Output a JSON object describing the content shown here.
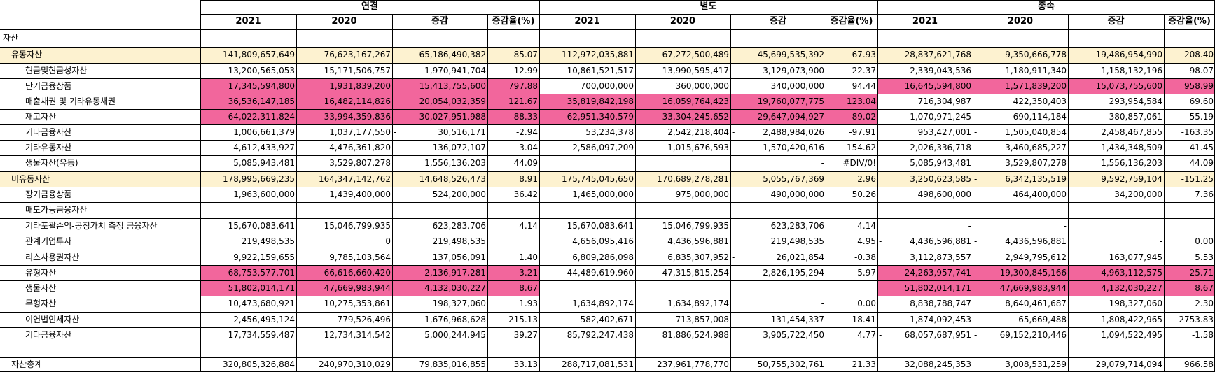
{
  "groups": [
    "연결",
    "별도",
    "종속"
  ],
  "subheaders": [
    "2021",
    "2020",
    "증감",
    "증감율(%)"
  ],
  "rows": [
    {
      "label": "자산",
      "style": "section",
      "values": [
        "",
        "",
        "",
        "",
        "",
        "",
        "",
        "",
        "",
        "",
        "",
        ""
      ]
    },
    {
      "label": "유동자산",
      "style": "subtotal",
      "values": [
        "141,809,657,649",
        "76,623,167,267",
        "65,186,490,382",
        "85.07",
        "112,972,035,881",
        "67,272,500,489",
        "45,699,535,392",
        "67.93",
        "28,837,621,768",
        "9,350,666,778",
        "19,486,954,990",
        "208.40"
      ]
    },
    {
      "label": "현금및현금성자산",
      "style": "item",
      "values": [
        "13,200,565,053",
        "15,171,506,757",
        "- 1,970,941,704",
        "-12.99",
        "10,861,521,517",
        "13,990,595,417",
        "- 3,129,073,900",
        "-22.37",
        "2,339,043,536",
        "1,180,911,340",
        "1,158,132,196",
        "98.07"
      ]
    },
    {
      "label": "단기금융상품",
      "style": "item",
      "hl": [
        0,
        1,
        2,
        3,
        8,
        9,
        10,
        11
      ],
      "values": [
        "17,345,594,800",
        "1,931,839,200",
        "15,413,755,600",
        "797.88",
        "700,000,000",
        "360,000,000",
        "340,000,000",
        "94.44",
        "16,645,594,800",
        "1,571,839,200",
        "15,073,755,600",
        "958.99"
      ]
    },
    {
      "label": "매출채권 및 기타유동채권",
      "style": "item",
      "hl": [
        0,
        1,
        2,
        3,
        4,
        5,
        6,
        7
      ],
      "values": [
        "36,536,147,185",
        "16,482,114,826",
        "20,054,032,359",
        "121.67",
        "35,819,842,198",
        "16,059,764,423",
        "19,760,077,775",
        "123.04",
        "716,304,987",
        "422,350,403",
        "293,954,584",
        "69.60"
      ]
    },
    {
      "label": "재고자산",
      "style": "item",
      "hl": [
        0,
        1,
        2,
        3,
        4,
        5,
        6,
        7
      ],
      "values": [
        "64,022,311,824",
        "33,994,359,836",
        "30,027,951,988",
        "88.33",
        "62,951,340,579",
        "33,304,245,652",
        "29,647,094,927",
        "89.02",
        "1,070,971,245",
        "690,114,184",
        "380,857,061",
        "55.19"
      ]
    },
    {
      "label": "기타금융자산",
      "style": "item",
      "values": [
        "1,006,661,379",
        "1,037,177,550",
        "- 30,516,171",
        "-2.94",
        "53,234,378",
        "2,542,218,404",
        "- 2,488,984,026",
        "-97.91",
        "953,427,001",
        "- 1,505,040,854",
        "2,458,467,855",
        "-163.35"
      ]
    },
    {
      "label": "기타유동자산",
      "style": "item",
      "values": [
        "4,612,433,927",
        "4,476,361,820",
        "136,072,107",
        "3.04",
        "2,586,097,209",
        "1,015,676,593",
        "1,570,420,616",
        "154.62",
        "2,026,336,718",
        "3,460,685,227",
        "- 1,434,348,509",
        "-41.45"
      ]
    },
    {
      "label": "생물자산(유동)",
      "style": "item",
      "values": [
        "5,085,943,481",
        "3,529,807,278",
        "1,556,136,203",
        "44.09",
        "",
        "",
        "-",
        "#DIV/0!",
        "5,085,943,481",
        "3,529,807,278",
        "1,556,136,203",
        "44.09"
      ]
    },
    {
      "label": "비유동자산",
      "style": "subtotal",
      "values": [
        "178,995,669,235",
        "164,347,142,762",
        "14,648,526,473",
        "8.91",
        "175,745,045,650",
        "170,689,278,281",
        "5,055,767,369",
        "2.96",
        "3,250,623,585",
        "- 6,342,135,519",
        "9,592,759,104",
        "-151.25"
      ]
    },
    {
      "label": "장기금융상품",
      "style": "item",
      "values": [
        "1,963,600,000",
        "1,439,400,000",
        "524,200,000",
        "36.42",
        "1,465,000,000",
        "975,000,000",
        "490,000,000",
        "50.26",
        "498,600,000",
        "464,400,000",
        "34,200,000",
        "7.36"
      ]
    },
    {
      "label": "매도가능금융자산",
      "style": "item",
      "values": [
        "",
        "",
        "",
        "",
        "",
        "",
        "",
        "",
        "",
        "",
        "",
        ""
      ]
    },
    {
      "label": "기타포괄손익-공정가치 측정 금융자산",
      "style": "item",
      "values": [
        "15,670,083,641",
        "15,046,799,935",
        "623,283,706",
        "4.14",
        "15,670,083,641",
        "15,046,799,935",
        "623,283,706",
        "4.14",
        "-",
        "-",
        "",
        ""
      ]
    },
    {
      "label": "관계기업투자",
      "style": "item",
      "values": [
        "219,498,535",
        "0",
        "219,498,535",
        "",
        "4,656,095,416",
        "4,436,596,881",
        "219,498,535",
        "4.95",
        "- 4,436,596,881",
        "- 4,436,596,881",
        "-",
        "0.00"
      ]
    },
    {
      "label": "리스사용권자산",
      "style": "item",
      "values": [
        "9,922,159,655",
        "9,785,103,564",
        "137,056,091",
        "1.40",
        "6,809,286,098",
        "6,835,307,952",
        "- 26,021,854",
        "-0.38",
        "3,112,873,557",
        "2,949,795,612",
        "163,077,945",
        "5.53"
      ]
    },
    {
      "label": "유형자산",
      "style": "item",
      "hl": [
        0,
        1,
        2,
        3,
        8,
        9,
        10,
        11
      ],
      "values": [
        "68,753,577,701",
        "66,616,660,420",
        "2,136,917,281",
        "3.21",
        "44,489,619,960",
        "47,315,815,254",
        "- 2,826,195,294",
        "-5.97",
        "24,263,957,741",
        "19,300,845,166",
        "4,963,112,575",
        "25.71"
      ]
    },
    {
      "label": "생물자산",
      "style": "item",
      "hl": [
        0,
        1,
        2,
        3,
        8,
        9,
        10,
        11
      ],
      "values": [
        "51,802,014,171",
        "47,669,983,944",
        "4,132,030,227",
        "8.67",
        "",
        "",
        "",
        "",
        "51,802,014,171",
        "47,669,983,944",
        "4,132,030,227",
        "8.67"
      ]
    },
    {
      "label": "무형자산",
      "style": "item",
      "values": [
        "10,473,680,921",
        "10,275,353,861",
        "198,327,060",
        "1.93",
        "1,634,892,174",
        "1,634,892,174",
        "-",
        "0.00",
        "8,838,788,747",
        "8,640,461,687",
        "198,327,060",
        "2.30"
      ]
    },
    {
      "label": "이연법인세자산",
      "style": "item",
      "values": [
        "2,456,495,124",
        "779,526,496",
        "1,676,968,628",
        "215.13",
        "582,402,671",
        "713,857,008",
        "- 131,454,337",
        "-18.41",
        "1,874,092,453",
        "65,669,488",
        "1,808,422,965",
        "2753.83"
      ]
    },
    {
      "label": "기타금융자산",
      "style": "item",
      "values": [
        "17,734,559,487",
        "12,734,314,542",
        "5,000,244,945",
        "39.27",
        "85,792,247,438",
        "81,886,524,988",
        "3,905,722,450",
        "4.77",
        "- 68,057,687,951",
        "- 69,152,210,446",
        "1,094,522,495",
        "-1.58"
      ]
    },
    {
      "label": "",
      "style": "blank",
      "values": [
        "",
        "",
        "",
        "",
        "",
        "",
        "",
        "",
        "-",
        "-",
        "",
        ""
      ]
    },
    {
      "label": "자산총계",
      "style": "total",
      "values": [
        "320,805,326,884",
        "240,970,310,029",
        "79,835,016,855",
        "33.13",
        "288,717,081,531",
        "237,961,778,770",
        "50,755,302,761",
        "21.33",
        "32,088,245,353",
        "3,008,531,259",
        "29,079,714,094",
        "966.58"
      ]
    }
  ],
  "colors": {
    "highlight": "#f2669c",
    "subtotal": "#fdf2d0",
    "grid": "#000000"
  }
}
